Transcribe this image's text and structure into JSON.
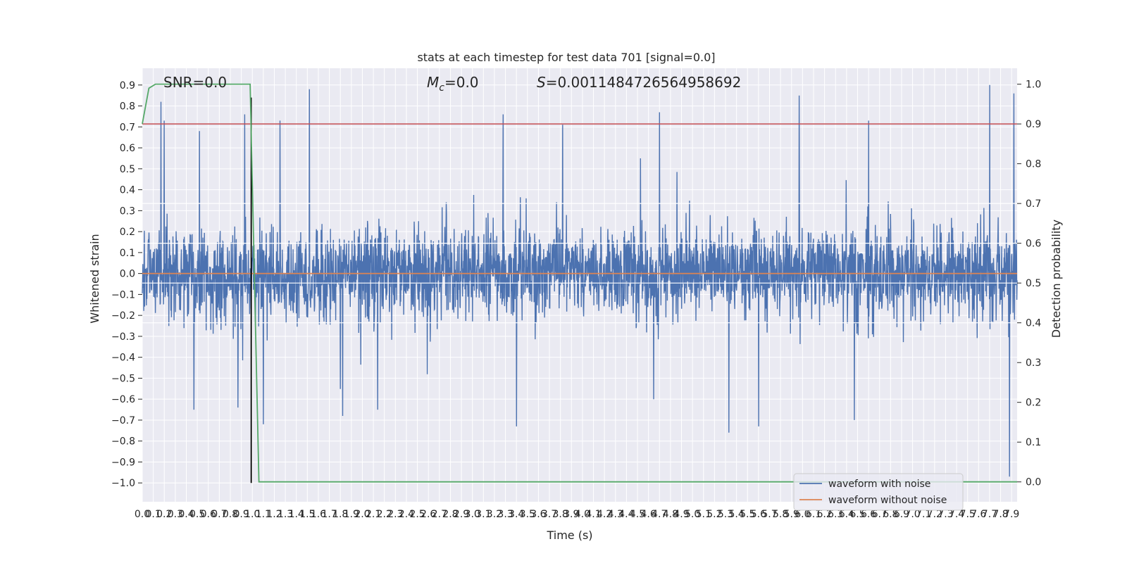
{
  "chart_data": {
    "type": "line",
    "title": "stats at each timestep for test data 701 [signal=0.0]",
    "xlabel": "Time (s)",
    "ylabel": "Whitened strain",
    "y2label": "Detection probability",
    "xlim": [
      0.0,
      7.95
    ],
    "ylim": [
      -1.09,
      0.98
    ],
    "y2lim": [
      -0.05,
      1.04
    ],
    "x_ticks": [
      0.0,
      0.1,
      0.2,
      0.3,
      0.4,
      0.5,
      0.6,
      0.7,
      0.8,
      0.9,
      1.0,
      1.1,
      1.2,
      1.3,
      1.4,
      1.5,
      1.6,
      1.7,
      1.8,
      1.9,
      2.0,
      2.1,
      2.2,
      2.3,
      2.4,
      2.5,
      2.6,
      2.7,
      2.8,
      2.9,
      3.0,
      3.1,
      3.2,
      3.3,
      3.4,
      3.5,
      3.6,
      3.7,
      3.8,
      3.9,
      4.0,
      4.1,
      4.2,
      4.3,
      4.4,
      4.5,
      4.6,
      4.7,
      4.8,
      4.9,
      5.0,
      5.1,
      5.2,
      5.3,
      5.4,
      5.5,
      5.6,
      5.7,
      5.8,
      5.9,
      6.0,
      6.1,
      6.2,
      6.3,
      6.4,
      6.5,
      6.6,
      6.7,
      6.8,
      6.9,
      7.0,
      7.1,
      7.2,
      7.3,
      7.4,
      7.5,
      7.6,
      7.7,
      7.8,
      7.9
    ],
    "y_ticks": [
      -1.0,
      -0.9,
      -0.8,
      -0.7,
      -0.6,
      -0.5,
      -0.4,
      -0.3,
      -0.2,
      -0.1,
      0.0,
      0.1,
      0.2,
      0.3,
      0.4,
      0.5,
      0.6,
      0.7,
      0.8,
      0.9
    ],
    "y2_ticks": [
      0.0,
      0.1,
      0.2,
      0.3,
      0.4,
      0.5,
      0.6,
      0.7,
      0.8,
      0.9,
      1.0
    ],
    "grid": true,
    "legend_position": "lower-right",
    "annotations": {
      "snr": "SNR=0.0",
      "mc_symbol": "M",
      "mc_sub": "c",
      "mc_value": "=0.0",
      "s_symbol": "S",
      "s_value": "=0.0011484726564958692"
    },
    "series": [
      {
        "name": "waveform with noise",
        "color": "#4c72b0",
        "axis": "left",
        "description_values": {
          "typical_range": [
            -0.45,
            0.4
          ],
          "peaks": [
            {
              "x": 0.17,
              "y": 0.82
            },
            {
              "x": 0.2,
              "y": 0.73
            },
            {
              "x": 0.52,
              "y": 0.68
            },
            {
              "x": 0.93,
              "y": 0.76
            },
            {
              "x": 1.25,
              "y": 0.73
            },
            {
              "x": 1.52,
              "y": 0.88
            },
            {
              "x": 3.28,
              "y": 0.76
            },
            {
              "x": 3.82,
              "y": 0.71
            },
            {
              "x": 4.7,
              "y": 0.77
            },
            {
              "x": 5.97,
              "y": 0.85
            },
            {
              "x": 6.6,
              "y": 0.73
            },
            {
              "x": 7.7,
              "y": 0.9
            },
            {
              "x": 7.92,
              "y": 0.86
            }
          ],
          "troughs": [
            {
              "x": 0.47,
              "y": -0.65
            },
            {
              "x": 0.87,
              "y": -0.64
            },
            {
              "x": 1.1,
              "y": -0.72
            },
            {
              "x": 1.82,
              "y": -0.68
            },
            {
              "x": 2.14,
              "y": -0.65
            },
            {
              "x": 3.4,
              "y": -0.73
            },
            {
              "x": 5.33,
              "y": -0.76
            },
            {
              "x": 5.6,
              "y": -0.73
            },
            {
              "x": 6.47,
              "y": -0.7
            },
            {
              "x": 7.88,
              "y": -0.97
            }
          ]
        }
      },
      {
        "name": "waveform without noise",
        "color": "#dd8452",
        "axis": "left",
        "x": [
          0.0,
          7.95
        ],
        "y": [
          0.0,
          0.0
        ]
      },
      {
        "name": "",
        "color": "#55a868",
        "axis": "right",
        "x": [
          0.0,
          0.06,
          0.12,
          0.3,
          0.6,
          0.98,
          1.06,
          1.1,
          7.88,
          7.95
        ],
        "y": [
          0.9,
          0.99,
          1.0,
          1.0,
          1.0,
          1.0,
          0.0,
          0.0,
          0.0,
          0.0
        ]
      }
    ],
    "threshold_line": {
      "y2": 0.9,
      "color": "#c44e52"
    },
    "vertical_line": {
      "x": 0.99,
      "color": "#000000",
      "y_from": -1.0,
      "y_to": 0.84
    },
    "white_hlines_y2": [
      0.4,
      0.5,
      0.6,
      0.7
    ]
  }
}
